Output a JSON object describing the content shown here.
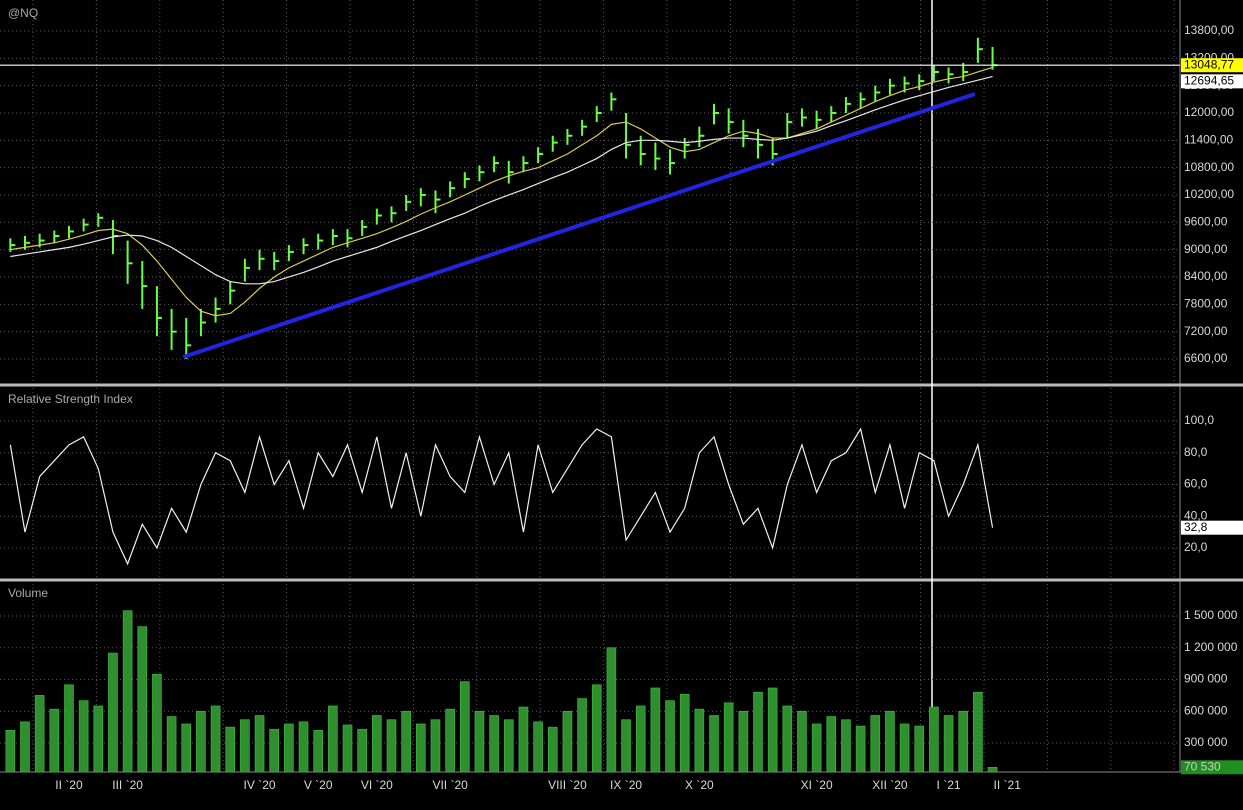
{
  "chart_data": [
    {
      "type": "candlestick",
      "title": "@NQ",
      "categories": [
        null,
        null,
        null,
        null,
        "II `20",
        null,
        null,
        null,
        "III `20",
        null,
        null,
        null,
        null,
        null,
        null,
        null,
        null,
        "IV `20",
        null,
        null,
        null,
        "V `20",
        null,
        null,
        null,
        "VI `20",
        null,
        null,
        null,
        null,
        "VII `20",
        null,
        null,
        null,
        null,
        null,
        null,
        null,
        "VIII `20",
        null,
        null,
        null,
        "IX `20",
        null,
        null,
        null,
        null,
        "X `20",
        null,
        null,
        null,
        null,
        null,
        null,
        null,
        "XI `20",
        null,
        null,
        null,
        null,
        "XII `20",
        null,
        null,
        null,
        "I `21",
        null,
        null,
        null,
        "II `21"
      ],
      "color": "#66ff44",
      "high": [
        9250,
        9300,
        9350,
        9420,
        9520,
        9680,
        9800,
        9650,
        9200,
        8750,
        8200,
        7700,
        7500,
        7700,
        7950,
        8300,
        8800,
        9000,
        8950,
        9100,
        9250,
        9350,
        9450,
        9450,
        9650,
        9900,
        9950,
        10200,
        10350,
        10300,
        10500,
        10700,
        10850,
        11050,
        10950,
        11050,
        11250,
        11500,
        11650,
        11850,
        12150,
        12450,
        12000,
        11500,
        11350,
        11200,
        11450,
        11700,
        12200,
        12100,
        11850,
        11650,
        11450,
        12000,
        12100,
        12050,
        12150,
        12350,
        12450,
        12600,
        12750,
        12800,
        12850,
        13050,
        13000,
        13100,
        13650,
        13450,
        null
      ],
      "low": [
        8950,
        9000,
        9050,
        9150,
        9250,
        9400,
        9500,
        8900,
        8250,
        7700,
        7100,
        6800,
        6600,
        7100,
        7400,
        7800,
        8300,
        8550,
        8550,
        8750,
        8900,
        9000,
        9100,
        9050,
        9300,
        9550,
        9600,
        9850,
        9950,
        9800,
        10150,
        10350,
        10500,
        10700,
        10450,
        10700,
        10900,
        11150,
        11300,
        11500,
        11800,
        12050,
        11000,
        10850,
        10750,
        10650,
        11000,
        11250,
        11750,
        11550,
        11250,
        11000,
        10850,
        11450,
        11700,
        11650,
        11800,
        12000,
        12100,
        12250,
        12400,
        12450,
        12500,
        12700,
        12650,
        12700,
        13100,
        12950,
        null
      ],
      "values": [
        9100,
        9150,
        9200,
        9300,
        9400,
        9550,
        9700,
        9300,
        8700,
        8200,
        7500,
        7200,
        6900,
        7400,
        7700,
        8100,
        8600,
        8800,
        8750,
        8950,
        9100,
        9200,
        9300,
        9250,
        9500,
        9750,
        9800,
        10050,
        10200,
        10100,
        10350,
        10550,
        10700,
        10900,
        10700,
        10900,
        11100,
        11350,
        11500,
        11700,
        12000,
        12300,
        11300,
        11100,
        11000,
        10900,
        11300,
        11500,
        12000,
        11800,
        11500,
        11300,
        11100,
        11800,
        11900,
        11850,
        12000,
        12200,
        12300,
        12450,
        12600,
        12650,
        12700,
        12900,
        12850,
        12900,
        13400,
        13048.77,
        null
      ],
      "overlays": [
        {
          "color": "#d8cc4a",
          "values": [
            9000,
            9050,
            9100,
            9150,
            9230,
            9320,
            9420,
            9450,
            9350,
            9100,
            8750,
            8350,
            7950,
            7650,
            7550,
            7600,
            7850,
            8150,
            8400,
            8600,
            8750,
            8900,
            9050,
            9150,
            9250,
            9350,
            9480,
            9620,
            9780,
            9920,
            10050,
            10200,
            10350,
            10500,
            10620,
            10720,
            10800,
            10950,
            11100,
            11300,
            11500,
            11750,
            11800,
            11650,
            11450,
            11250,
            11150,
            11200,
            11350,
            11500,
            11600,
            11550,
            11450,
            11450,
            11550,
            11650,
            11800,
            11950,
            12100,
            12250,
            12380,
            12500,
            12580,
            12680,
            12750,
            12800,
            12900,
            13000,
            null
          ]
        },
        {
          "color": "#e8e8e8",
          "values": [
            8850,
            8900,
            8950,
            9000,
            9050,
            9120,
            9200,
            9280,
            9320,
            9300,
            9200,
            9050,
            8850,
            8650,
            8450,
            8300,
            8250,
            8250,
            8300,
            8400,
            8500,
            8620,
            8750,
            8850,
            8950,
            9050,
            9180,
            9300,
            9420,
            9550,
            9680,
            9800,
            9950,
            10080,
            10200,
            10320,
            10450,
            10580,
            10700,
            10850,
            11000,
            11200,
            11350,
            11400,
            11400,
            11380,
            11350,
            11380,
            11420,
            11450,
            11450,
            11420,
            11400,
            11450,
            11520,
            11600,
            11720,
            11830,
            11950,
            12070,
            12180,
            12290,
            12380,
            12470,
            12560,
            12640,
            12720,
            12800,
            null
          ]
        }
      ],
      "trendline": {
        "color": "#2424e0",
        "x": [
          11.8,
          65.8
        ],
        "y": [
          6644,
          12417
        ]
      },
      "ylim": [
        6073,
        14480
      ],
      "yticks": [
        {
          "value": 6600,
          "label": "6600,00"
        },
        {
          "value": 7200,
          "label": "7200,00"
        },
        {
          "value": 7800,
          "label": "7800,00"
        },
        {
          "value": 8400,
          "label": "8400,00"
        },
        {
          "value": 9000,
          "label": "9000,00"
        },
        {
          "value": 9600,
          "label": "9600,00"
        },
        {
          "value": 10200,
          "label": "10200,00"
        },
        {
          "value": 10800,
          "label": "10800,00"
        },
        {
          "value": 11400,
          "label": "11400,00"
        },
        {
          "value": 12000,
          "label": "12000,00"
        },
        {
          "value": 12600,
          "label": "12600,00"
        },
        {
          "value": 13200,
          "label": "13200,00"
        },
        {
          "value": 13800,
          "label": "13800,00"
        }
      ],
      "tags": [
        {
          "value": 13048.77,
          "label": "13048,77",
          "color": "#ffff00"
        },
        {
          "value": 12694.65,
          "label": "12694,65",
          "color": "#ffffff"
        }
      ],
      "grid": true
    },
    {
      "type": "line",
      "title": "Relative Strength Index",
      "color": "#f0f0f0",
      "values": [
        85,
        30,
        65,
        75,
        85,
        90,
        70,
        30,
        10,
        35,
        20,
        45,
        30,
        60,
        80,
        75,
        55,
        90,
        60,
        75,
        45,
        80,
        65,
        85,
        55,
        90,
        45,
        80,
        40,
        85,
        65,
        55,
        90,
        60,
        80,
        30,
        85,
        55,
        70,
        85,
        95,
        90,
        25,
        40,
        55,
        30,
        45,
        80,
        90,
        60,
        35,
        45,
        20,
        60,
        85,
        55,
        75,
        80,
        95,
        55,
        85,
        45,
        80,
        75,
        40,
        60,
        85,
        32.8,
        null
      ],
      "ylim": [
        1.1,
        120.8
      ],
      "yticks": [
        {
          "value": 20,
          "label": "20,0"
        },
        {
          "value": 40,
          "label": "40,0"
        },
        {
          "value": 60,
          "label": "60,0"
        },
        {
          "value": 80,
          "label": "80,0"
        },
        {
          "value": 100,
          "label": "100,0"
        }
      ],
      "tags": [
        {
          "value": 32.8,
          "label": "32,8",
          "color": "#ffffff"
        }
      ],
      "grid": true
    },
    {
      "type": "bar",
      "title": "Volume",
      "color": "#2f8f2f",
      "values": [
        420000,
        500000,
        750000,
        620000,
        850000,
        700000,
        650000,
        1150000,
        1550000,
        1400000,
        950000,
        550000,
        480000,
        600000,
        650000,
        450000,
        520000,
        560000,
        430000,
        480000,
        500000,
        420000,
        650000,
        470000,
        430000,
        560000,
        520000,
        600000,
        480000,
        520000,
        620000,
        880000,
        600000,
        560000,
        520000,
        640000,
        500000,
        450000,
        600000,
        720000,
        850000,
        1200000,
        520000,
        650000,
        820000,
        700000,
        760000,
        620000,
        560000,
        680000,
        600000,
        780000,
        820000,
        650000,
        600000,
        480000,
        550000,
        520000,
        460000,
        560000,
        600000,
        480000,
        460000,
        640000,
        560000,
        600000,
        780000,
        70530,
        null
      ],
      "ylim": [
        26000,
        1811800
      ],
      "yticks": [
        {
          "value": 300000,
          "label": "300 000"
        },
        {
          "value": 600000,
          "label": "600 000"
        },
        {
          "value": 900000,
          "label": "900 000"
        },
        {
          "value": 1200000,
          "label": "1 200 000"
        },
        {
          "value": 1500000,
          "label": "1 500 000"
        }
      ],
      "tags": [
        {
          "value": 70530,
          "label": "70 530",
          "color": "#1f8f1f"
        }
      ],
      "grid": true
    }
  ]
}
